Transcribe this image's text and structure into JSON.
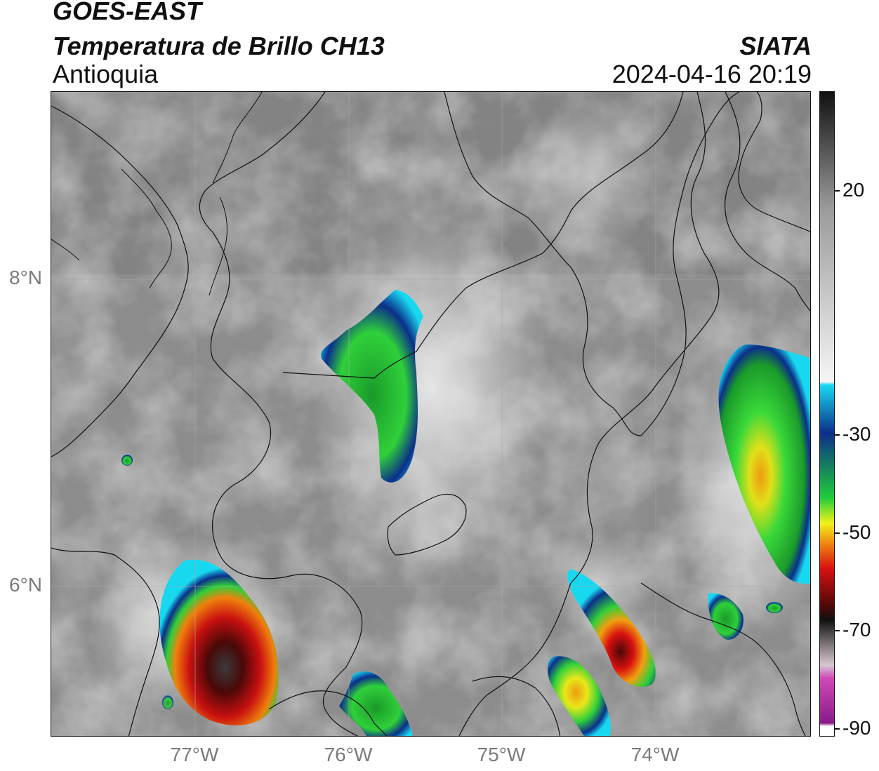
{
  "header": {
    "satellite": "GOES-EAST",
    "product": "Temperatura de Brillo CH13",
    "region": "Antioquia",
    "agency": "SIATA",
    "timestamp": "2024-04-16 20:19"
  },
  "map": {
    "lat_labels": [
      "8°N",
      "6°N"
    ],
    "lon_labels": [
      "77°W",
      "76°W",
      "75°W",
      "74°W"
    ],
    "background_color": "#8a8a8a",
    "border_color": "#000000"
  },
  "colorbar": {
    "ticks": [
      "20",
      "-30",
      "-50",
      "-70",
      "-90"
    ],
    "stops": {
      "top_black": "#111111",
      "gray": "#9a9a9a",
      "white": "#f5f5f5",
      "cyan": "#18d8f0",
      "blue": "#0b2f8a",
      "green": "#1fcc3a",
      "yellow": "#f2f21a",
      "orange": "#f08a10",
      "red": "#d81010",
      "dark_red": "#4a0808",
      "magenta": "#d04ab8",
      "purple": "#8a1a8a"
    }
  }
}
